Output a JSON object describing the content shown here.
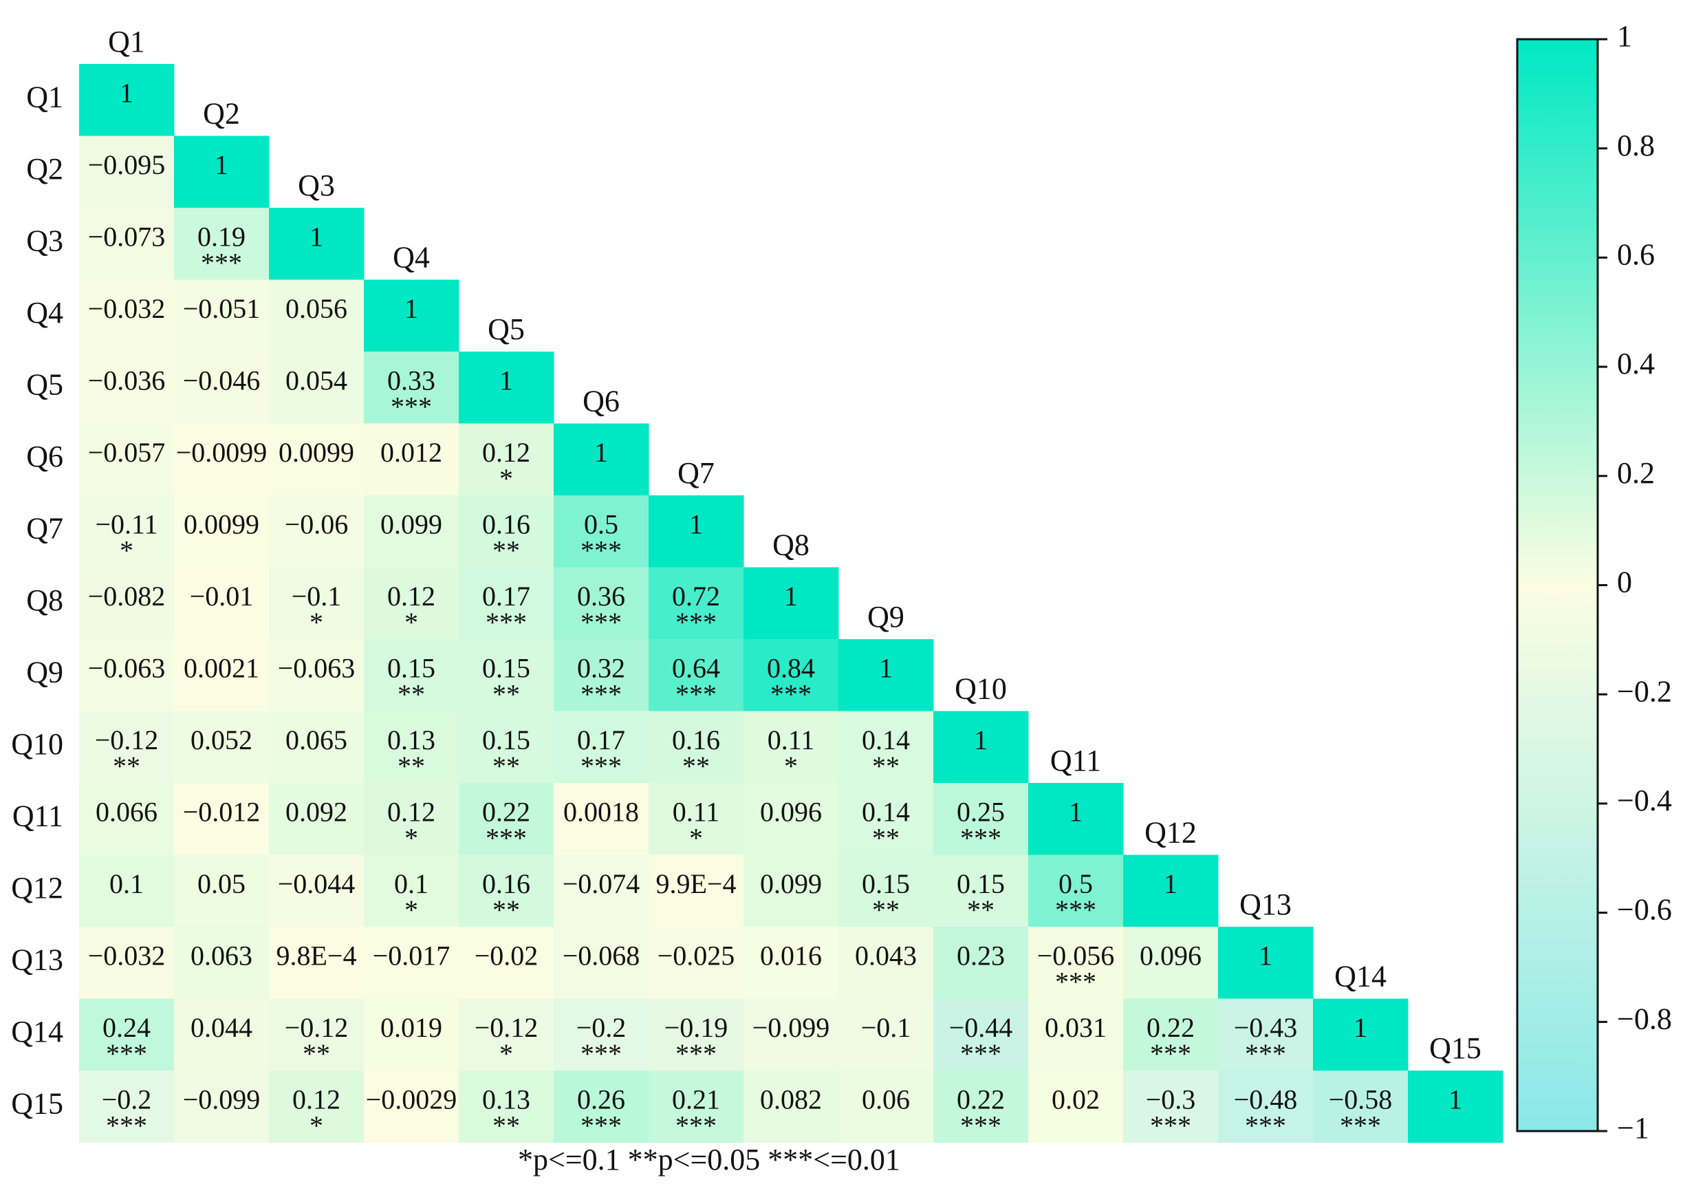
{
  "chart_data": {
    "type": "heatmap",
    "labels": [
      "Q1",
      "Q2",
      "Q3",
      "Q4",
      "Q5",
      "Q6",
      "Q7",
      "Q8",
      "Q9",
      "Q10",
      "Q11",
      "Q12",
      "Q13",
      "Q14",
      "Q15"
    ],
    "values": [
      [
        1
      ],
      [
        -0.095,
        1
      ],
      [
        -0.073,
        0.19,
        1
      ],
      [
        -0.032,
        -0.051,
        0.056,
        1
      ],
      [
        -0.036,
        -0.046,
        0.054,
        0.33,
        1
      ],
      [
        -0.057,
        -0.0099,
        0.0099,
        0.012,
        0.12,
        1
      ],
      [
        -0.11,
        0.0099,
        -0.06,
        0.099,
        0.16,
        0.5,
        1
      ],
      [
        -0.082,
        -0.01,
        -0.1,
        0.12,
        0.17,
        0.36,
        0.72,
        1
      ],
      [
        -0.063,
        0.0021,
        -0.063,
        0.15,
        0.15,
        0.32,
        0.64,
        0.84,
        1
      ],
      [
        -0.12,
        0.052,
        0.065,
        0.13,
        0.15,
        0.17,
        0.16,
        0.11,
        0.14,
        1
      ],
      [
        0.066,
        -0.012,
        0.092,
        0.12,
        0.22,
        0.0018,
        0.11,
        0.096,
        0.14,
        0.25,
        1
      ],
      [
        0.1,
        0.05,
        -0.044,
        0.1,
        0.16,
        -0.074,
        0.00099,
        0.099,
        0.15,
        0.15,
        0.5,
        1
      ],
      [
        -0.032,
        0.063,
        0.00098,
        -0.017,
        -0.02,
        -0.068,
        -0.025,
        0.016,
        0.043,
        0.23,
        -0.056,
        0.096,
        1
      ],
      [
        0.24,
        0.044,
        -0.12,
        0.019,
        -0.12,
        -0.2,
        -0.19,
        -0.099,
        -0.1,
        -0.44,
        0.031,
        0.22,
        -0.43,
        1
      ],
      [
        -0.2,
        -0.099,
        0.12,
        -0.0029,
        0.13,
        0.26,
        0.21,
        0.082,
        0.06,
        0.22,
        0.02,
        -0.3,
        -0.48,
        -0.58,
        1
      ]
    ],
    "value_labels": [
      [
        "1"
      ],
      [
        "−0.095",
        "1"
      ],
      [
        "−0.073",
        "0.19",
        "1"
      ],
      [
        "−0.032",
        "−0.051",
        "0.056",
        "1"
      ],
      [
        "−0.036",
        "−0.046",
        "0.054",
        "0.33",
        "1"
      ],
      [
        "−0.057",
        "−0.0099",
        "0.0099",
        "0.012",
        "0.12",
        "1"
      ],
      [
        "−0.11",
        "0.0099",
        "−0.06",
        "0.099",
        "0.16",
        "0.5",
        "1"
      ],
      [
        "−0.082",
        "−0.01",
        "−0.1",
        "0.12",
        "0.17",
        "0.36",
        "0.72",
        "1"
      ],
      [
        "−0.063",
        "0.0021",
        "−0.063",
        "0.15",
        "0.15",
        "0.32",
        "0.64",
        "0.84",
        "1"
      ],
      [
        "−0.12",
        "0.052",
        "0.065",
        "0.13",
        "0.15",
        "0.17",
        "0.16",
        "0.11",
        "0.14",
        "1"
      ],
      [
        "0.066",
        "−0.012",
        "0.092",
        "0.12",
        "0.22",
        "0.0018",
        "0.11",
        "0.096",
        "0.14",
        "0.25",
        "1"
      ],
      [
        "0.1",
        "0.05",
        "−0.044",
        "0.1",
        "0.16",
        "−0.074",
        "9.9E−4",
        "0.099",
        "0.15",
        "0.15",
        "0.5",
        "1"
      ],
      [
        "−0.032",
        "0.063",
        "9.8E−4",
        "−0.017",
        "−0.02",
        "−0.068",
        "−0.025",
        "0.016",
        "0.043",
        "0.23",
        "−0.056",
        "0.096",
        "1"
      ],
      [
        "0.24",
        "0.044",
        "−0.12",
        "0.019",
        "−0.12",
        "−0.2",
        "−0.19",
        "−0.099",
        "−0.1",
        "−0.44",
        "0.031",
        "0.22",
        "−0.43",
        "1"
      ],
      [
        "−0.2",
        "−0.099",
        "0.12",
        "−0.0029",
        "0.13",
        "0.26",
        "0.21",
        "0.082",
        "0.06",
        "0.22",
        "0.02",
        "−0.3",
        "−0.48",
        "−0.58",
        "1"
      ]
    ],
    "stars": [
      [
        null
      ],
      [
        null,
        null
      ],
      [
        null,
        "***",
        null
      ],
      [
        null,
        null,
        null,
        null
      ],
      [
        null,
        null,
        null,
        "***",
        null
      ],
      [
        null,
        null,
        null,
        null,
        "*",
        null
      ],
      [
        "*",
        null,
        null,
        null,
        "**",
        "***",
        null
      ],
      [
        null,
        null,
        "*",
        "*",
        "***",
        "***",
        "***",
        null
      ],
      [
        null,
        null,
        null,
        "**",
        "**",
        "***",
        "***",
        "***",
        null
      ],
      [
        "**",
        null,
        null,
        "**",
        "**",
        "***",
        "**",
        "*",
        "**",
        null
      ],
      [
        null,
        null,
        null,
        "*",
        "***",
        null,
        "*",
        null,
        "**",
        "***",
        null
      ],
      [
        null,
        null,
        null,
        "*",
        "**",
        null,
        null,
        null,
        "**",
        "**",
        "***",
        null
      ],
      [
        null,
        null,
        null,
        null,
        null,
        null,
        null,
        null,
        null,
        null,
        "***",
        null,
        null
      ],
      [
        "***",
        null,
        "**",
        null,
        "*",
        "***",
        "***",
        null,
        null,
        "***",
        null,
        "***",
        "***",
        null
      ],
      [
        "***",
        null,
        "*",
        null,
        "**",
        "***",
        "***",
        null,
        null,
        "***",
        null,
        "***",
        "***",
        "***",
        null
      ]
    ],
    "colorscale": [
      [
        -1,
        "#8ae8e8"
      ],
      [
        0,
        "#fbfde2"
      ],
      [
        1,
        "#00e8c3"
      ]
    ],
    "ylim": [
      -1,
      1
    ],
    "yticks": [
      1,
      0.8,
      0.6,
      0.4,
      0.2,
      0,
      {
        "value": -0.2,
        "label": "−0.2"
      },
      {
        "value": -0.4,
        "label": "−0.4"
      },
      {
        "value": -0.6,
        "label": "−0.6"
      },
      {
        "value": -0.8,
        "label": "−0.8"
      },
      {
        "value": -1,
        "label": "−1"
      }
    ],
    "footnote": "*p<=0.1 **p<=0.05 ***<=0.01"
  }
}
